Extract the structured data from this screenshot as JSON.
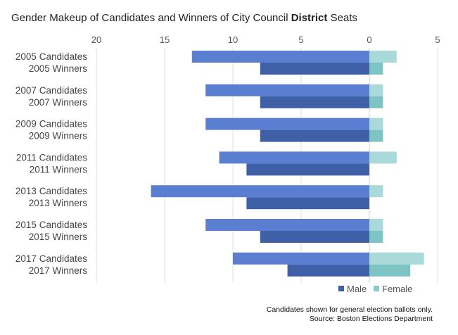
{
  "chart_data": {
    "type": "bar",
    "orientation": "horizontal",
    "title_prefix": "Gender Makeup of Candidates and Winners of City Council ",
    "title_bold": "District",
    "title_suffix": " Seats",
    "x_ticks": [
      "20",
      "15",
      "10",
      "5",
      "0",
      "5"
    ],
    "xlim": [
      -20,
      5
    ],
    "grid": true,
    "legend_position": "bottom-right",
    "categories": [
      "2005 Candidates",
      "2005 Winners",
      "2007 Candidates",
      "2007 Winners",
      "2009 Candidates",
      "2009 Winners",
      "2011 Candidates",
      "2011 Winners",
      "2013 Candidates",
      "2013 Winners",
      "2015 Candidates",
      "2015 Winners",
      "2017 Candidates",
      "2017 Winners"
    ],
    "series": [
      {
        "name": "Male",
        "candidate_color": "#5b7fd0",
        "winner_color": "#3f5fa6",
        "values": [
          13,
          8,
          12,
          8,
          12,
          8,
          11,
          9,
          16,
          9,
          12,
          8,
          10,
          6
        ]
      },
      {
        "name": "Female",
        "candidate_color": "#a9d9d9",
        "winner_color": "#7fc4c4",
        "values": [
          2,
          1,
          1,
          1,
          1,
          1,
          2,
          0,
          1,
          0,
          1,
          1,
          4,
          3
        ]
      }
    ],
    "legend": [
      {
        "label": "Male",
        "color": "#3f5fa6"
      },
      {
        "label": "Female",
        "color": "#8fcaca"
      }
    ],
    "footnotes": [
      "Candidates shown for general election ballots only.",
      "Source: Boston Elections Department"
    ]
  }
}
